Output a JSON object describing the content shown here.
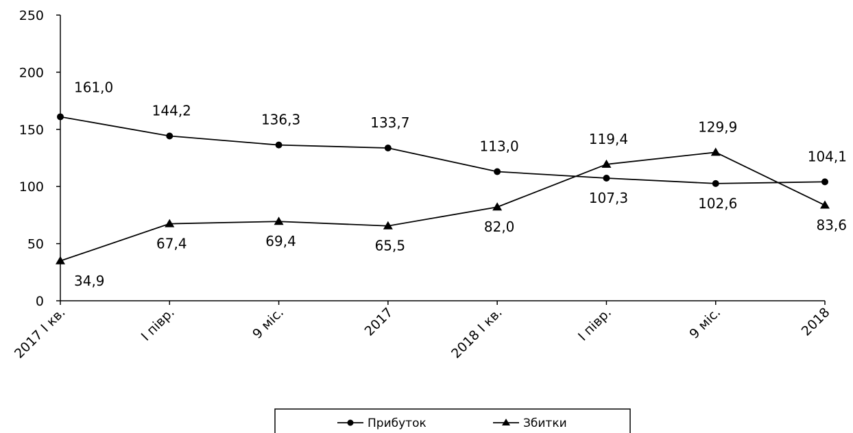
{
  "chart_data": {
    "type": "line",
    "categories": [
      "2017 I кв.",
      "I півр.",
      "9 міс.",
      "2017",
      "2018 I кв.",
      "I півр.",
      "9 міс.",
      "2018"
    ],
    "ylim": [
      0,
      250
    ],
    "yticks": [
      "0",
      "50",
      "100",
      "150",
      "200",
      "250"
    ],
    "series": [
      {
        "name": "Прибуток",
        "marker": "circle",
        "values": [
          161.0,
          144.2,
          136.3,
          133.7,
          113.0,
          107.3,
          102.6,
          104.1
        ],
        "labels": [
          "161,0",
          "144,2",
          "136,3",
          "133,7",
          "113,0",
          "107,3",
          "102,6",
          "104,1"
        ]
      },
      {
        "name": "Збитки",
        "marker": "triangle",
        "values": [
          34.9,
          67.4,
          69.4,
          65.5,
          82.0,
          119.4,
          129.9,
          83.6
        ],
        "labels": [
          "34,9",
          "67,4",
          "69,4",
          "65,5",
          "82,0",
          "119,4",
          "129,9",
          "83,6"
        ]
      }
    ],
    "grid": false,
    "legend_position": "bottom"
  },
  "colors": {
    "line": "#000000",
    "background": "#ffffff"
  }
}
